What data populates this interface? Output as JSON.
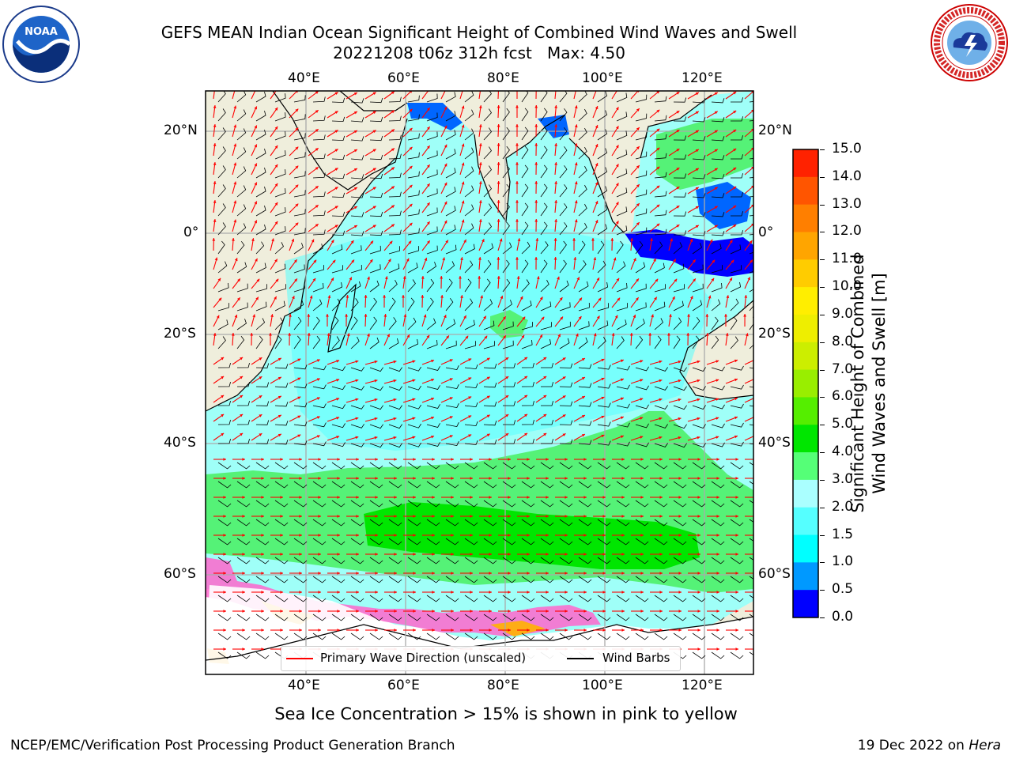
{
  "title": {
    "line1": "GEFS MEAN Indian Ocean Significant Height of Combined Wind Waves and Swell",
    "line2": "20221208 t06z 312h fcst   Max: 4.50"
  },
  "logos": {
    "left": "noaa-logo",
    "right": "nws-logo"
  },
  "map": {
    "top_lon_labels": [
      "40°E",
      "60°E",
      "80°E",
      "100°E",
      "120°E"
    ],
    "bottom_lon_labels": [
      "40°E",
      "60°E",
      "80°E",
      "100°E",
      "120°E"
    ],
    "left_lat_labels": [
      "20°N",
      "0°",
      "20°S",
      "40°S",
      "60°S"
    ],
    "right_lat_labels": [
      "20°N",
      "0°",
      "20°S",
      "40°S",
      "60°S"
    ]
  },
  "legend": {
    "wave_label": "Primary Wave Direction (unscaled)",
    "wave_color": "#ff0000",
    "barb_label": "Wind Barbs",
    "barb_color": "#000000"
  },
  "colorbar": {
    "label_line1": "Significant Height of Combined",
    "label_line2": "Wind Waves and Swell [m]",
    "tick_labels": [
      "15.0",
      "14.0",
      "13.0",
      "12.0",
      "11.0",
      "10.0",
      "9.0",
      "8.0",
      "7.0",
      "6.0",
      "5.0",
      "4.0",
      "3.0",
      "2.0",
      "1.5",
      "1.0",
      "0.5",
      "0.0"
    ],
    "colors": [
      "#ff0000",
      "#ff2200",
      "#ff5500",
      "#ff7f00",
      "#ffa500",
      "#ffcc00",
      "#ffee00",
      "#eeee00",
      "#ccee00",
      "#99ee00",
      "#55ee00",
      "#00e600",
      "#55ff77",
      "#aaffff",
      "#55ffff",
      "#00ffff",
      "#0099ff",
      "#0000ff"
    ]
  },
  "caption": "Sea Ice Concentration > 15% is shown in pink to yellow",
  "footer": {
    "left": "NCEP/EMC/Verification Post Processing Product Generation Branch",
    "right_prefix": "19 Dec 2022 on ",
    "right_host": "Hera"
  }
}
